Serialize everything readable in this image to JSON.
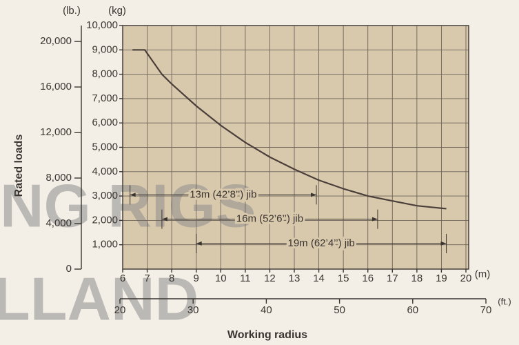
{
  "chart_data": {
    "type": "line",
    "y_label": "Rated loads",
    "x_label": "Working radius",
    "y_unit": "(kg)",
    "y2_unit": "(lb.)",
    "x_unit": "(m)",
    "x2_unit": "(ft.)",
    "x": [
      6.4,
      6.9,
      7.6,
      8,
      9,
      10,
      11,
      12,
      13,
      14,
      15,
      16,
      17,
      18,
      19.2
    ],
    "values": [
      9000,
      9000,
      8000,
      7600,
      6700,
      5900,
      5200,
      4600,
      4100,
      3650,
      3300,
      3000,
      2800,
      2600,
      2480
    ],
    "color": "#4a3f3a",
    "xlim": [
      6,
      20
    ],
    "xticks": [
      6,
      7,
      8,
      9,
      10,
      11,
      12,
      13,
      14,
      15,
      16,
      17,
      18,
      19,
      20
    ],
    "ylim": [
      0,
      10000
    ],
    "yticks": [
      {
        "value": 1000,
        "label": "1,000"
      },
      {
        "value": 2000,
        "label": "2,000"
      },
      {
        "value": 3000,
        "label": "3,000"
      },
      {
        "value": 4000,
        "label": "4,000"
      },
      {
        "value": 5000,
        "label": "5,000"
      },
      {
        "value": 6000,
        "label": "6,000"
      },
      {
        "value": 7000,
        "label": "7,000"
      },
      {
        "value": 8000,
        "label": "8,000"
      },
      {
        "value": 9000,
        "label": "9,000"
      },
      {
        "value": 10000,
        "label": "10,000"
      }
    ],
    "y2lim": [
      0,
      21400
    ],
    "y2ticks": [
      0,
      {
        "value": 4000,
        "label": "4,000"
      },
      {
        "value": 8000,
        "label": "8,000"
      },
      {
        "value": 12000,
        "label": "12,000"
      },
      {
        "value": 16000,
        "label": "16,000"
      },
      {
        "value": 20000,
        "label": "20,000"
      }
    ],
    "x2lim": [
      20,
      70
    ],
    "x2ticks": [
      20,
      30,
      40,
      50,
      60,
      70
    ],
    "grid": true,
    "annotations": [
      {
        "text": "13m (42’8’’) jib",
        "x_range": [
          6.3,
          13.9
        ],
        "y": 3050
      },
      {
        "text": "16m (52’6’’) jib",
        "x_range": [
          7.6,
          16.4
        ],
        "y": 2050
      },
      {
        "text": "19m (62’4’’) jib",
        "x_range": [
          9.0,
          19.2
        ],
        "y": 1050
      }
    ],
    "watermark": [
      "NG RIGS",
      "LLAND"
    ]
  }
}
